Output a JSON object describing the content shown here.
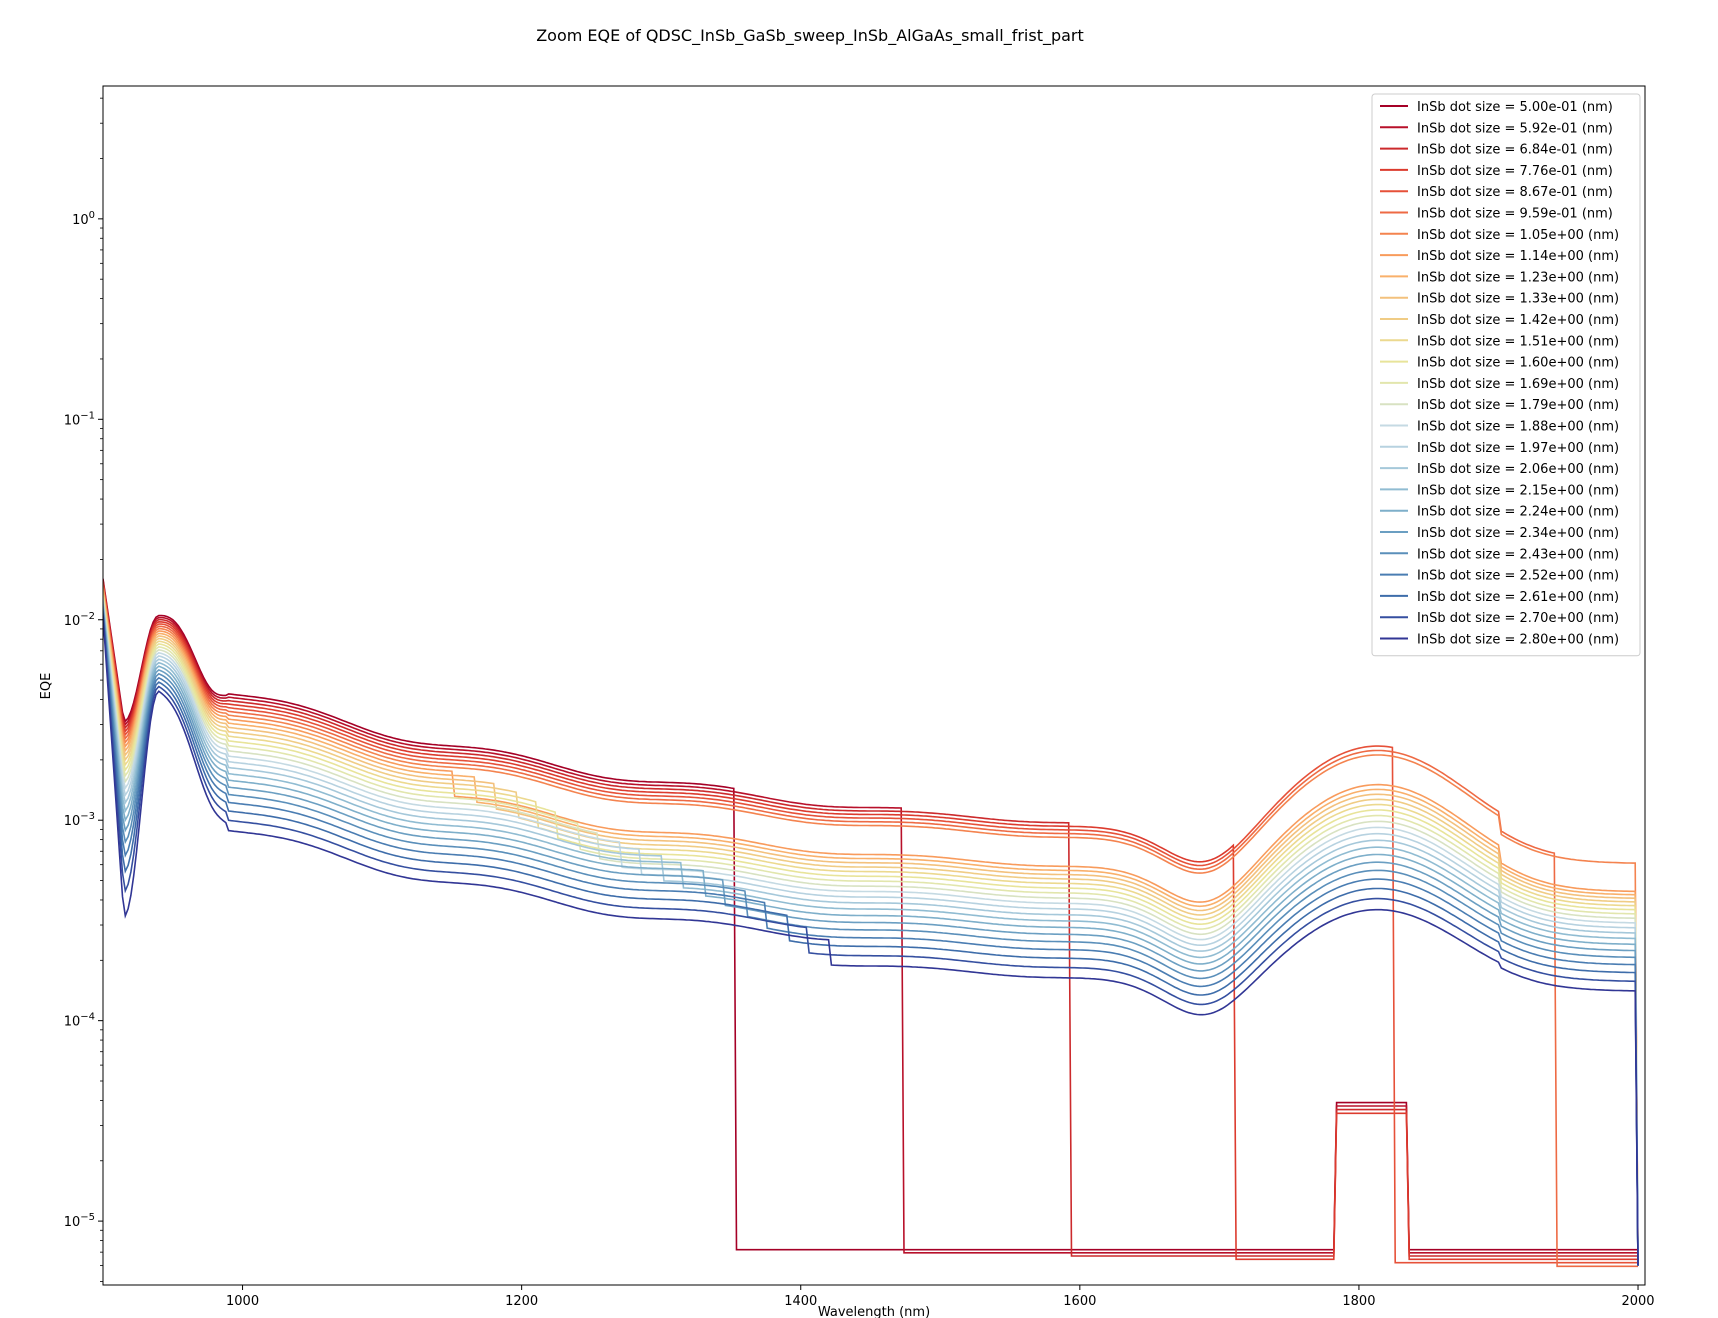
{
  "chart_data": {
    "type": "line",
    "title": "Zoom EQE of QDSC_InSb_GaSb_sweep_InSb_AlGaAs_small_frist_part",
    "xlabel": "Wavelength (nm)",
    "ylabel": "EQE",
    "xlim": [
      900,
      2005
    ],
    "ylim": [
      4.8e-06,
      4.6
    ],
    "yscale": "log",
    "x_ticks": [
      1000,
      1200,
      1400,
      1600,
      1800,
      2000
    ],
    "x_tick_labels": [
      "1000",
      "1200",
      "1400",
      "1600",
      "1800",
      "2000"
    ],
    "y_ticks": [
      1e-05,
      0.0001,
      0.001,
      0.01,
      0.1,
      1
    ],
    "y_tick_labels": [
      "10^-5",
      "10^-4",
      "10^-3",
      "10^-2",
      "10^-1",
      "10^0"
    ],
    "grid": false,
    "legend_position": "upper right",
    "colormap": "RdYlBu",
    "series": [
      {
        "name": "InSb dot size = 5.00e-01 (nm)",
        "color": "#a50026",
        "cutoff": 1353
      },
      {
        "name": "InSb dot size = 5.92e-01 (nm)",
        "color": "#b8102a",
        "cutoff": 1473
      },
      {
        "name": "InSb dot size = 6.84e-01 (nm)",
        "color": "#cc2a2c",
        "cutoff": 1592
      },
      {
        "name": "InSb dot size = 7.76e-01 (nm)",
        "color": "#dc3b2e",
        "cutoff": 1710
      },
      {
        "name": "InSb dot size = 8.67e-01 (nm)",
        "color": "#e65139",
        "cutoff": 1825
      },
      {
        "name": "InSb dot size = 9.59e-01 (nm)",
        "color": "#ee6a44",
        "cutoff": 1940
      },
      {
        "name": "InSb dot size = 1.05e+00 (nm)",
        "color": "#f4834f",
        "cutoff": null
      },
      {
        "name": "InSb dot size = 1.14e+00 (nm)",
        "color": "#f89b5c",
        "cutoff": null
      },
      {
        "name": "InSb dot size = 1.23e+00 (nm)",
        "color": "#f9b06b",
        "cutoff": null
      },
      {
        "name": "InSb dot size = 1.33e+00 (nm)",
        "color": "#f3c17d",
        "cutoff": null
      },
      {
        "name": "InSb dot size = 1.42e+00 (nm)",
        "color": "#f0cc85",
        "cutoff": null
      },
      {
        "name": "InSb dot size = 1.51e+00 (nm)",
        "color": "#ecd98f",
        "cutoff": null
      },
      {
        "name": "InSb dot size = 1.60e+00 (nm)",
        "color": "#e8e49a",
        "cutoff": null
      },
      {
        "name": "InSb dot size = 1.69e+00 (nm)",
        "color": "#e2e6ad",
        "cutoff": null
      },
      {
        "name": "InSb dot size = 1.79e+00 (nm)",
        "color": "#d8e2c2",
        "cutoff": null
      },
      {
        "name": "InSb dot size = 1.88e+00 (nm)",
        "color": "#c5dae3",
        "cutoff": null
      },
      {
        "name": "InSb dot size = 1.97e+00 (nm)",
        "color": "#b7d2e0",
        "cutoff": null
      },
      {
        "name": "InSb dot size = 2.06e+00 (nm)",
        "color": "#a5c8da",
        "cutoff": null
      },
      {
        "name": "InSb dot size = 2.15e+00 (nm)",
        "color": "#90bcd2",
        "cutoff": null
      },
      {
        "name": "InSb dot size = 2.24e+00 (nm)",
        "color": "#7eafca",
        "cutoff": null
      },
      {
        "name": "InSb dot size = 2.34e+00 (nm)",
        "color": "#6b9fc2",
        "cutoff": null
      },
      {
        "name": "InSb dot size = 2.43e+00 (nm)",
        "color": "#5a8fba",
        "cutoff": null
      },
      {
        "name": "InSb dot size = 2.52e+00 (nm)",
        "color": "#4a7db2",
        "cutoff": null
      },
      {
        "name": "InSb dot size = 2.61e+00 (nm)",
        "color": "#3e6daa",
        "cutoff": null
      },
      {
        "name": "InSb dot size = 2.70e+00 (nm)",
        "color": "#354fa0",
        "cutoff": null
      },
      {
        "name": "InSb dot size = 2.80e+00 (nm)",
        "color": "#313695",
        "cutoff": null
      }
    ]
  }
}
